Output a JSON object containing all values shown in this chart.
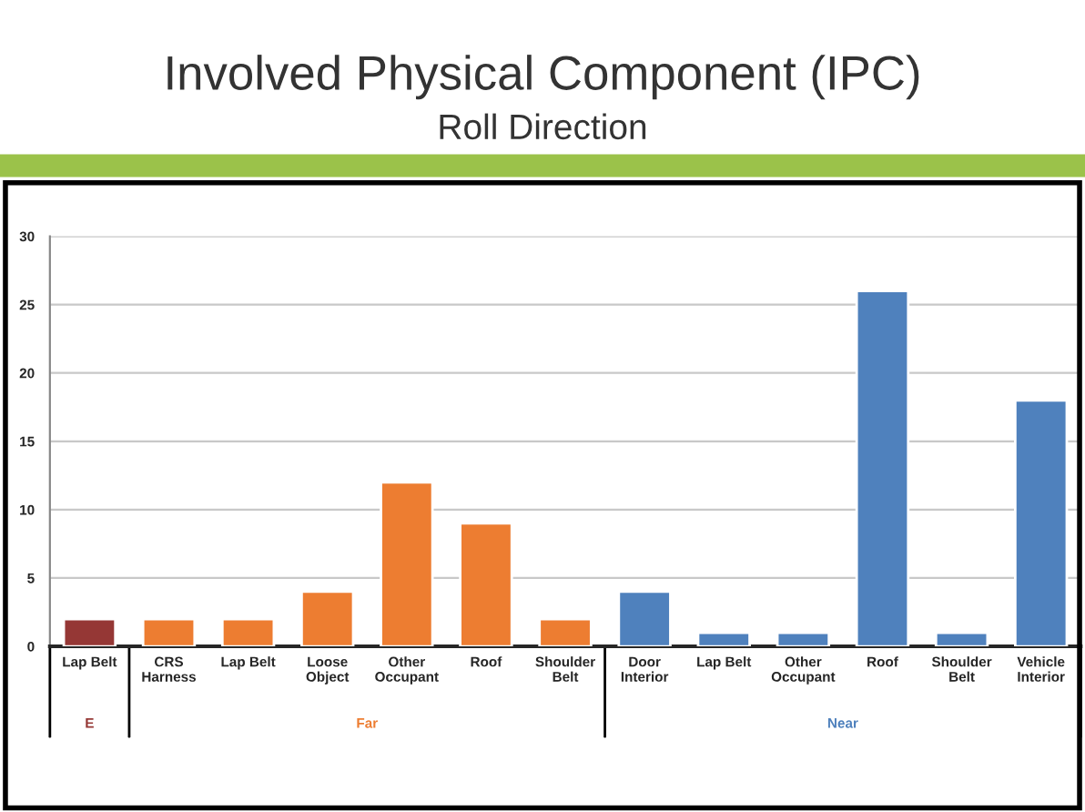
{
  "chart_data": {
    "type": "bar",
    "title": "Involved Physical Component (IPC)",
    "subtitle": "Roll Direction",
    "categories": [
      "Lap Belt",
      "CRS\nHarness",
      "Lap Belt",
      "Loose\nObject",
      "Other\nOccupant",
      "Roof",
      "Shoulder\nBelt",
      "Door\nInterior",
      "Lap Belt",
      "Other\nOccupant",
      "Roof",
      "Shoulder\nBelt",
      "Vehicle\nInterior"
    ],
    "series": [
      {
        "name": "E",
        "color": "#953735",
        "values": [
          2,
          null,
          null,
          null,
          null,
          null,
          null,
          null,
          null,
          null,
          null,
          null,
          null
        ]
      },
      {
        "name": "Far",
        "color": "#ed7d31",
        "values": [
          null,
          2,
          2,
          4,
          12,
          9,
          2,
          null,
          null,
          null,
          null,
          null,
          null
        ]
      },
      {
        "name": "Near",
        "color": "#4f81bd",
        "values": [
          null,
          null,
          null,
          null,
          null,
          null,
          null,
          4,
          1,
          1,
          26,
          1,
          18
        ]
      }
    ],
    "ylim": [
      0,
      30
    ],
    "yticks": [
      0,
      5,
      10,
      15,
      20,
      25,
      30
    ],
    "grid": "y",
    "legend": false
  }
}
